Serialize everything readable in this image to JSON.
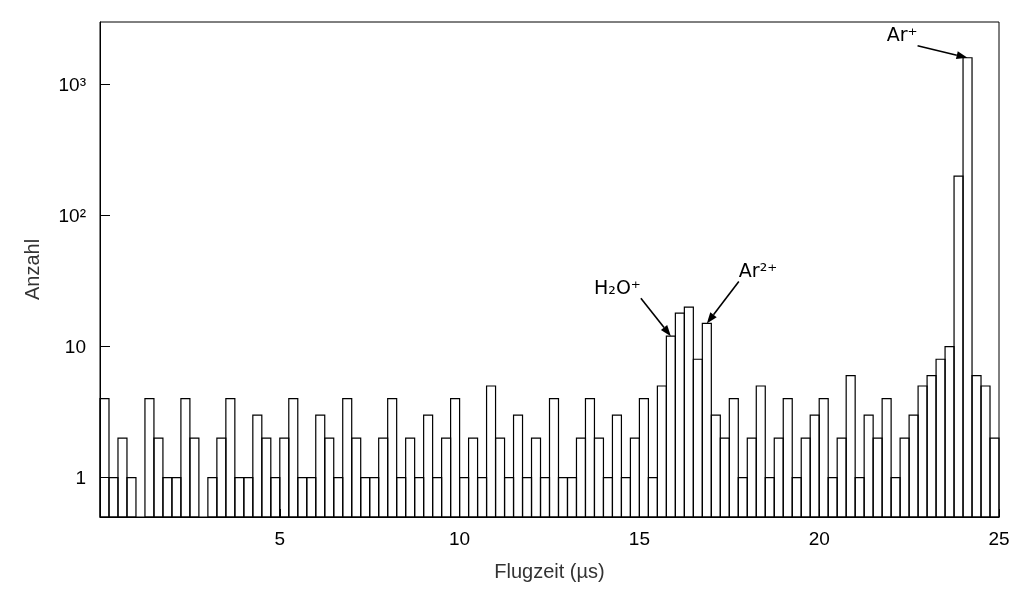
{
  "chart_data": {
    "type": "histogram",
    "xlabel": "Flugzeit (µs)",
    "ylabel": "Anzahl",
    "bins": [
      0,
      0.25,
      0.5,
      0.75,
      1,
      1.25,
      1.5,
      1.75,
      2,
      2.25,
      2.5,
      2.75,
      3,
      3.25,
      3.5,
      3.75,
      4,
      4.25,
      4.5,
      4.75,
      5,
      5.25,
      5.5,
      5.75,
      6,
      6.25,
      6.5,
      6.75,
      7,
      7.25,
      7.5,
      7.75,
      8,
      8.25,
      8.5,
      8.75,
      9,
      9.25,
      9.5,
      9.75,
      10,
      10.25,
      10.5,
      10.75,
      11,
      11.25,
      11.5,
      11.75,
      12,
      12.25,
      12.5,
      12.75,
      13,
      13.25,
      13.5,
      13.75,
      14,
      14.25,
      14.5,
      14.75,
      15,
      15.25,
      15.5,
      15.75,
      16,
      16.25,
      16.5,
      16.75,
      17,
      17.25,
      17.5,
      17.75,
      18,
      18.25,
      18.5,
      18.75,
      19,
      19.25,
      19.5,
      19.75,
      20,
      20.25,
      20.5,
      20.75,
      21,
      21.25,
      21.5,
      21.75,
      22,
      22.25,
      22.5,
      22.75,
      23,
      23.25,
      23.5,
      23.75,
      24,
      24.25,
      24.5,
      24.75,
      25
    ],
    "values": [
      4,
      1,
      2,
      1,
      null,
      4,
      2,
      1,
      1,
      4,
      2,
      null,
      1,
      2,
      4,
      1,
      1,
      3,
      2,
      1,
      2,
      4,
      1,
      1,
      3,
      2,
      1,
      4,
      2,
      1,
      1,
      2,
      4,
      1,
      2,
      1,
      3,
      1,
      2,
      4,
      1,
      2,
      1,
      5,
      2,
      1,
      3,
      1,
      2,
      1,
      4,
      1,
      1,
      2,
      4,
      2,
      1,
      3,
      1,
      2,
      4,
      1,
      5,
      12,
      18,
      20,
      8,
      15,
      3,
      2,
      4,
      1,
      2,
      5,
      1,
      2,
      4,
      1,
      2,
      3,
      4,
      1,
      2,
      6,
      1,
      3,
      2,
      4,
      1,
      2,
      3,
      5,
      6,
      8,
      10,
      200,
      1600,
      6,
      5,
      2
    ],
    "color": "#000000",
    "log": "y",
    "xlim": [
      0,
      25
    ],
    "xticks": [
      5,
      10,
      15,
      20,
      25
    ],
    "ylim": [
      0.5,
      3000
    ],
    "yticks": [
      1,
      10,
      {
        "value": 100,
        "label": "10²"
      },
      {
        "value": 1000,
        "label": "10³"
      }
    ],
    "grid": false,
    "annotations": [
      {
        "text": "H₂O⁺",
        "x": 15.875,
        "y": 12
      },
      {
        "text": "Ar²⁺",
        "x": 16.875,
        "y": 15
      },
      {
        "text": "Ar⁺",
        "x": 24.125,
        "y": 1600
      }
    ]
  }
}
